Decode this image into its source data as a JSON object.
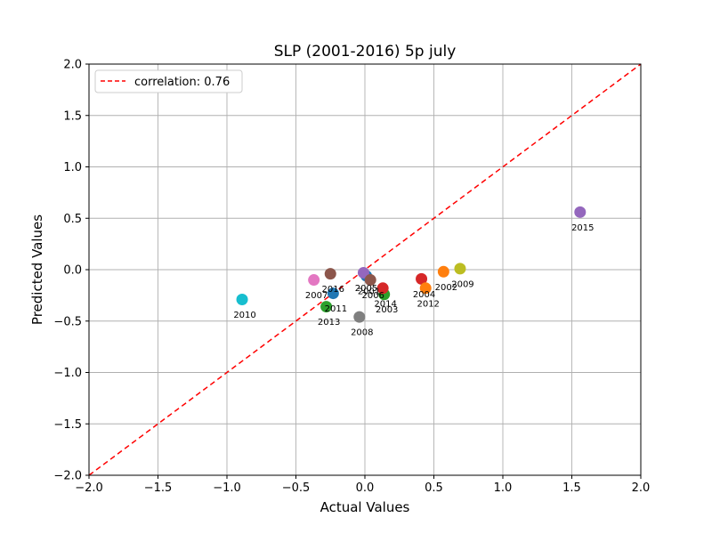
{
  "chart_data": {
    "type": "scatter",
    "title": "SLP (2001-2016) 5p july",
    "xlabel": "Actual Values",
    "ylabel": "Predicted Values",
    "xlim": [
      -2.0,
      2.0
    ],
    "ylim": [
      -2.0,
      2.0
    ],
    "xticks": [
      "−2.0",
      "−1.5",
      "−1.0",
      "−0.5",
      "0.0",
      "0.5",
      "1.0",
      "1.5",
      "2.0"
    ],
    "yticks": [
      "−2.0",
      "−1.5",
      "−1.0",
      "−0.5",
      "0.0",
      "0.5",
      "1.0",
      "1.5",
      "2.0"
    ],
    "grid": true,
    "legend": {
      "position": "top-left",
      "entries": [
        {
          "label": "correlation: 0.76",
          "style": "dashed",
          "color": "#ff0000"
        }
      ]
    },
    "reference_line": {
      "from": [
        -2.0,
        -2.0
      ],
      "to": [
        2.0,
        2.0
      ],
      "color": "#ff0000",
      "style": "dashed"
    },
    "points": [
      {
        "label": "2001",
        "x": 0.01,
        "y": -0.06,
        "color": "#1f77b4"
      },
      {
        "label": "2002",
        "x": 0.57,
        "y": -0.02,
        "color": "#ff7f0e"
      },
      {
        "label": "2003",
        "x": 0.14,
        "y": -0.24,
        "color": "#2ca02c"
      },
      {
        "label": "2004",
        "x": 0.41,
        "y": -0.09,
        "color": "#d62728"
      },
      {
        "label": "2005",
        "x": -0.01,
        "y": -0.03,
        "color": "#9467bd"
      },
      {
        "label": "2006",
        "x": 0.04,
        "y": -0.1,
        "color": "#8c564b"
      },
      {
        "label": "2007",
        "x": -0.37,
        "y": -0.1,
        "color": "#e377c2"
      },
      {
        "label": "2008",
        "x": -0.04,
        "y": -0.46,
        "color": "#7f7f7f"
      },
      {
        "label": "2009",
        "x": 0.69,
        "y": 0.01,
        "color": "#bcbd22"
      },
      {
        "label": "2010",
        "x": -0.89,
        "y": -0.29,
        "color": "#17becf"
      },
      {
        "label": "2011",
        "x": -0.23,
        "y": -0.23,
        "color": "#1f77b4"
      },
      {
        "label": "2012",
        "x": 0.44,
        "y": -0.18,
        "color": "#ff7f0e"
      },
      {
        "label": "2013",
        "x": -0.28,
        "y": -0.36,
        "color": "#2ca02c"
      },
      {
        "label": "2014",
        "x": 0.13,
        "y": -0.18,
        "color": "#d62728"
      },
      {
        "label": "2015",
        "x": 1.56,
        "y": 0.56,
        "color": "#9467bd"
      },
      {
        "label": "2016",
        "x": -0.25,
        "y": -0.04,
        "color": "#8c564b"
      }
    ]
  }
}
